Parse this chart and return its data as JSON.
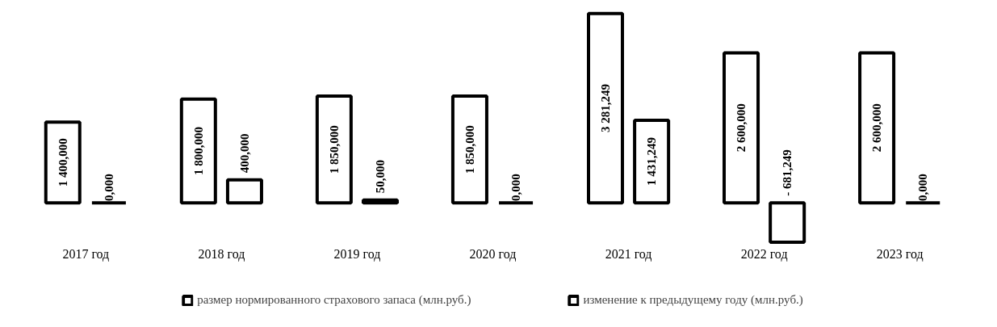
{
  "chart_data": {
    "type": "bar",
    "categories": [
      "2017 год",
      "2018 год",
      "2019 год",
      "2020 год",
      "2021 год",
      "2022 год",
      "2023 год"
    ],
    "series": [
      {
        "name": "размер нормированного страхового запаса (млн.руб.)",
        "color": "#000000",
        "values": [
          1400,
          1800,
          1850,
          1850,
          3281.249,
          2600,
          2600
        ],
        "value_labels": [
          "1 400,000",
          "1 800,000",
          "1 850,000",
          "1 850,000",
          "3 281,249",
          "2 600,000",
          "2 600,000"
        ]
      },
      {
        "name": "изменение к предыдущему году (млн.руб.)",
        "color": "#000000",
        "values": [
          0,
          400,
          50,
          0,
          1431.249,
          -681.249,
          0
        ],
        "value_labels": [
          "0,000",
          "400,000",
          "50,000",
          "0,000",
          "1 431,249",
          "- 681,249",
          "0,000"
        ]
      }
    ],
    "legend": "bottom"
  }
}
